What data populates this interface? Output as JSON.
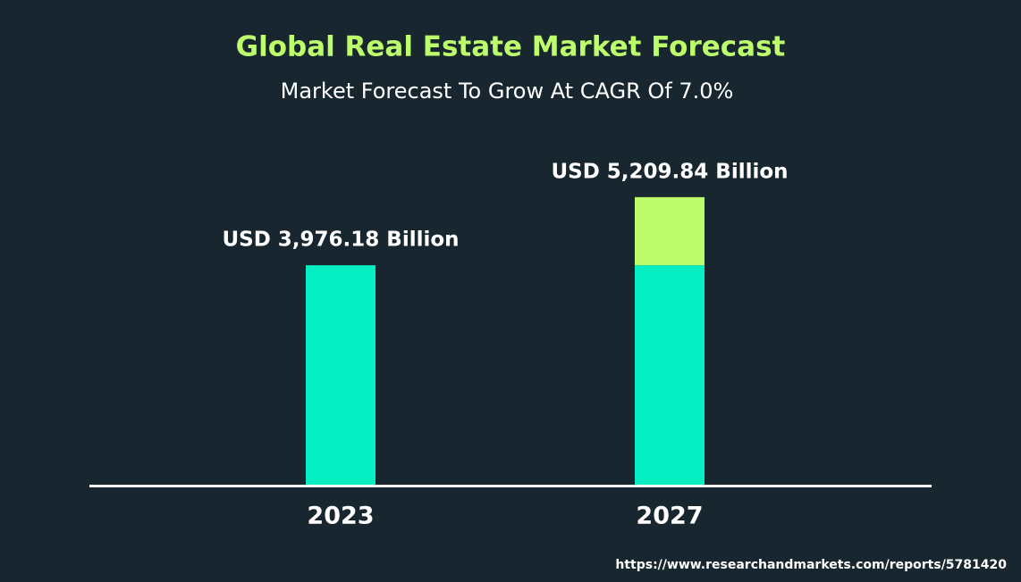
{
  "chart_data": {
    "type": "bar",
    "title": "Global Real Estate Market Forecast",
    "subtitle": "Market Forecast To Grow At CAGR Of 7.0%",
    "categories": [
      "2023",
      "2027"
    ],
    "values": [
      3976.18,
      5209.84
    ],
    "value_labels": [
      "USD 3,976.18 Billion",
      "USD 5,209.84 Billion"
    ],
    "color": "#05efc2",
    "growth_color": "#bdfd6c",
    "ylim": [
      0,
      6000
    ],
    "source": "https://www.researchandmarkets.com/reports/5781420"
  }
}
